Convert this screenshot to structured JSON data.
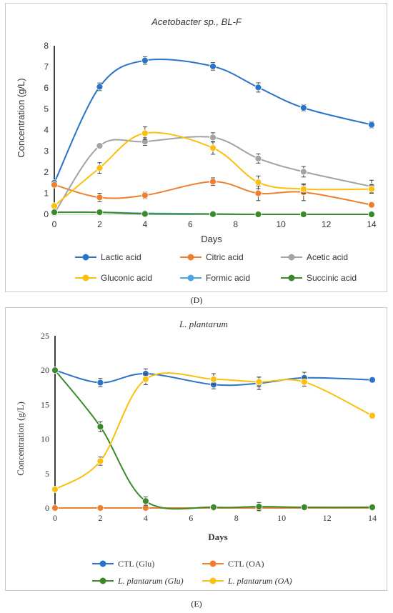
{
  "panels": [
    {
      "id": "D",
      "caption": "(D)",
      "chart_data": {
        "type": "line",
        "title": "Acetobacter sp., BL-F",
        "xlabel": "Days",
        "ylabel": "Concentration (g/L)",
        "xlim": [
          0,
          14
        ],
        "ylim": [
          0,
          8
        ],
        "xticks": [
          0,
          2,
          4,
          6,
          8,
          10,
          12,
          14
        ],
        "yticks": [
          0,
          1,
          2,
          3,
          4,
          5,
          6,
          7,
          8
        ],
        "grid": false,
        "legend_position": "bottom",
        "series": [
          {
            "name": "Lactic acid",
            "color": "#2a74c8",
            "x": [
              0,
              2,
              4,
              7,
              9,
              11,
              14
            ],
            "y": [
              1.5,
              6.05,
              7.3,
              7.02,
              6.02,
              5.05,
              4.25
            ],
            "err": [
              0.05,
              0.18,
              0.18,
              0.18,
              0.22,
              0.15,
              0.15
            ]
          },
          {
            "name": "Citric acid",
            "color": "#ee7f31",
            "x": [
              0,
              2,
              4,
              7,
              9,
              11,
              14
            ],
            "y": [
              1.4,
              0.8,
              0.9,
              1.55,
              1.0,
              1.05,
              0.45
            ],
            "err": [
              0.05,
              0.2,
              0.15,
              0.18,
              0.35,
              0.4,
              0.05
            ]
          },
          {
            "name": "Acetic acid",
            "color": "#a3a3a3",
            "x": [
              0,
              2,
              4,
              7,
              9,
              11,
              14
            ],
            "y": [
              0.05,
              3.25,
              3.45,
              3.65,
              2.65,
              2.02,
              1.32
            ],
            "err": [
              0.05,
              0.1,
              0.18,
              0.22,
              0.22,
              0.25,
              0.3
            ]
          },
          {
            "name": "Gluconic acid",
            "color": "#fbbf0f",
            "x": [
              0,
              2,
              4,
              7,
              9,
              11,
              14
            ],
            "y": [
              0.4,
              2.2,
              3.85,
              3.15,
              1.52,
              1.2,
              1.2
            ],
            "err": [
              0.05,
              0.25,
              0.3,
              0.3,
              0.3,
              0.2,
              0.2
            ]
          },
          {
            "name": "Formic acid",
            "color": "#4aa6dc",
            "x": [
              0,
              2,
              4,
              7,
              9,
              11,
              14
            ],
            "y": [
              0.1,
              0.1,
              0.05,
              0.02,
              0.0,
              0.0,
              0.0
            ],
            "err": [
              0,
              0,
              0,
              0,
              0,
              0,
              0
            ]
          },
          {
            "name": "Succinic acid",
            "color": "#3a8a2c",
            "x": [
              0,
              2,
              4,
              7,
              9,
              11,
              14
            ],
            "y": [
              0.1,
              0.1,
              0.02,
              0.01,
              0.0,
              0.0,
              0.0
            ],
            "err": [
              0,
              0,
              0,
              0,
              0,
              0,
              0
            ]
          }
        ]
      }
    },
    {
      "id": "E",
      "caption": "(E)",
      "chart_data": {
        "type": "line",
        "title": "L. plantarum",
        "xlabel": "Days",
        "ylabel": "Concentration (g/L)",
        "xlim": [
          0,
          14
        ],
        "ylim": [
          0,
          25
        ],
        "xticks": [
          0,
          2,
          4,
          6,
          8,
          10,
          12,
          14
        ],
        "yticks": [
          0,
          5,
          10,
          15,
          20,
          25
        ],
        "grid": false,
        "legend_position": "bottom",
        "series": [
          {
            "name": "CTL (Glu)",
            "color": "#2a74c8",
            "x": [
              0,
              2,
              4,
              7,
              9,
              11,
              14
            ],
            "y": [
              20.0,
              18.2,
              19.5,
              17.9,
              18.1,
              18.9,
              18.6
            ],
            "err": [
              0.1,
              0.6,
              0.7,
              0.6,
              0.9,
              0.8,
              0.1
            ]
          },
          {
            "name": "CTL (OA)",
            "color": "#ee7f31",
            "x": [
              0,
              2,
              4,
              7,
              9,
              11,
              14
            ],
            "y": [
              0.0,
              0.0,
              0.0,
              0.0,
              0.0,
              0.0,
              0.0
            ],
            "err": [
              0,
              0,
              0,
              0,
              0,
              0,
              0
            ]
          },
          {
            "name": "L. plantarum (Glu)",
            "color": "#3a8a2c",
            "x": [
              0,
              2,
              4,
              7,
              9,
              11,
              14
            ],
            "y": [
              20.0,
              11.8,
              1.0,
              0.1,
              0.2,
              0.1,
              0.1
            ],
            "err": [
              0.1,
              0.7,
              0.6,
              0.3,
              0.6,
              0.1,
              0.1
            ]
          },
          {
            "name": "L. plantarum (OA)",
            "color": "#fbbf0f",
            "x": [
              0,
              2,
              4,
              7,
              9,
              11,
              14
            ],
            "y": [
              2.7,
              6.8,
              18.7,
              18.7,
              18.3,
              18.3,
              13.4
            ],
            "err": [
              0.1,
              0.6,
              0.8,
              0.8,
              0.7,
              0.6,
              0.4
            ]
          }
        ]
      }
    }
  ]
}
